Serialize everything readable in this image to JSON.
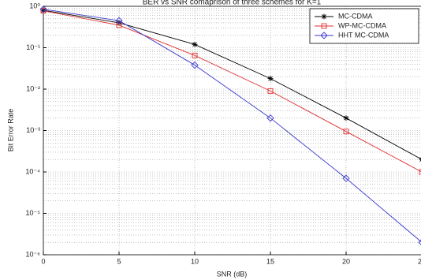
{
  "chart_data": {
    "type": "line",
    "title": "BER vs SNR comaprison of three schemes for K=1",
    "xlabel": "SNR (dB)",
    "ylabel": "Bit Error Rate",
    "x": [
      0,
      5,
      10,
      15,
      20,
      25
    ],
    "series": [
      {
        "name": "MC-CDMA",
        "color": "#000000",
        "marker": "star",
        "values": [
          0.8,
          0.4,
          0.12,
          0.018,
          0.002,
          0.0002
        ]
      },
      {
        "name": "WP-MC-CDMA",
        "color": "#e03030",
        "marker": "square",
        "values": [
          0.78,
          0.35,
          0.065,
          0.009,
          0.00095,
          0.0001
        ]
      },
      {
        "name": "HHT MC-CDMA",
        "color": "#3a3acf",
        "marker": "diamond",
        "values": [
          0.85,
          0.45,
          0.038,
          0.002,
          7e-05,
          2e-06
        ]
      }
    ],
    "xlim": [
      0,
      25
    ],
    "xticks": [
      0,
      5,
      10,
      15,
      20,
      25
    ],
    "ylim": [
      1e-06,
      1
    ],
    "ylog": true,
    "yticks": [
      {
        "value": 1e-06,
        "label": "10⁻⁶"
      },
      {
        "value": 1e-05,
        "label": "10⁻⁵"
      },
      {
        "value": 0.0001,
        "label": "10⁻⁴"
      },
      {
        "value": 0.001,
        "label": "10⁻³"
      },
      {
        "value": 0.01,
        "label": "10⁻²"
      },
      {
        "value": 0.1,
        "label": "10⁻¹"
      },
      {
        "value": 1,
        "label": "10⁰"
      }
    ],
    "grid": true,
    "legend": "upper right"
  }
}
